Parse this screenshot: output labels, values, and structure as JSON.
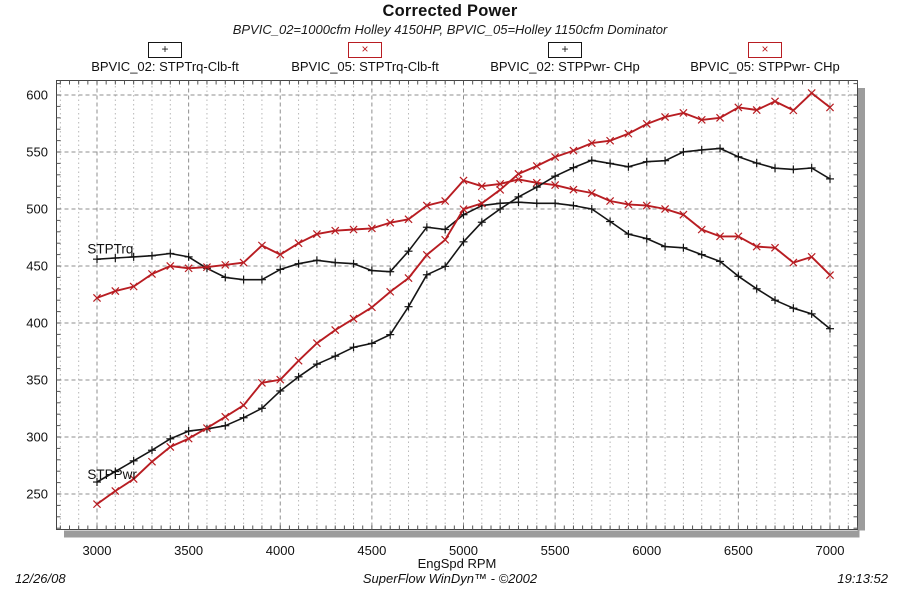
{
  "header": {
    "title": "Corrected Power",
    "subtitle": "BPVIC_02=1000cfm Holley 4150HP, BPVIC_05=Holley 1150cfm Dominator"
  },
  "legend": [
    {
      "marker": "+",
      "label": "BPVIC_02: STPTrq-Clb-ft",
      "color": "#151515"
    },
    {
      "marker": "×",
      "label": "BPVIC_05: STPTrq-Clb-ft",
      "color": "#b81d22"
    },
    {
      "marker": "+",
      "label": "BPVIC_02: STPPwr- CHp",
      "color": "#151515"
    },
    {
      "marker": "×",
      "label": "BPVIC_05: STPPwr- CHp",
      "color": "#b81d22"
    }
  ],
  "footer": {
    "date": "12/26/08",
    "center": "SuperFlow WinDyn™ - ©2002",
    "time": "19:13:52"
  },
  "chart_data": {
    "type": "line",
    "title": "Corrected Power",
    "xlabel": "EngSpd  RPM",
    "ylabel": "",
    "xlim": [
      3000,
      7000
    ],
    "ylim": [
      250,
      600
    ],
    "xticks": [
      3000,
      3500,
      4000,
      4500,
      5000,
      5500,
      6000,
      6500,
      7000
    ],
    "yticks": [
      250,
      300,
      350,
      400,
      450,
      500,
      550,
      600
    ],
    "grid": {
      "horizontal": "dashed every 50",
      "vertical_minor": "dotted every 100 rpm",
      "vertical_major": "dashed every 500 rpm"
    },
    "legend_position": "top",
    "x": [
      3000,
      3100,
      3200,
      3300,
      3400,
      3500,
      3600,
      3700,
      3800,
      3900,
      4000,
      4100,
      4200,
      4300,
      4400,
      4500,
      4600,
      4700,
      4800,
      4900,
      5000,
      5100,
      5200,
      5300,
      5400,
      5500,
      5600,
      5700,
      5800,
      5900,
      6000,
      6100,
      6200,
      6300,
      6400,
      6500,
      6600,
      6700,
      6800,
      6900,
      7000
    ],
    "series": [
      {
        "name": "BPVIC_02: STPTrq-Clb-ft",
        "color": "#151515",
        "marker": "+",
        "values": [
          456,
          457,
          458,
          459,
          461,
          458,
          448,
          440,
          438,
          438,
          447,
          452,
          455,
          453,
          452,
          446,
          445,
          463,
          484,
          482,
          495,
          503,
          505,
          506,
          505,
          505,
          503,
          500,
          489,
          478,
          474,
          467,
          466,
          460,
          454,
          441,
          430,
          420,
          413,
          408,
          395
        ]
      },
      {
        "name": "BPVIC_05: STPTrq-Clb-ft",
        "color": "#b81d22",
        "marker": "×",
        "values": [
          422,
          428,
          432,
          443,
          450,
          448,
          449,
          451,
          453,
          468,
          460,
          470,
          478,
          481,
          482,
          483,
          488,
          491,
          503,
          507,
          525,
          520,
          522,
          526,
          523,
          521,
          517,
          514,
          507,
          504,
          503,
          500,
          495,
          482,
          476,
          476,
          467,
          466,
          453,
          458,
          442
        ]
      },
      {
        "name": "BPVIC_02: STPPwr- CHp",
        "color": "#151515",
        "marker": "+",
        "values": [
          260.5,
          269.7,
          279.1,
          288.4,
          298.4,
          305.2,
          307.1,
          309.9,
          316.9,
          325.2,
          340.4,
          352.8,
          363.9,
          370.9,
          378.7,
          382.1,
          389.8,
          414.3,
          442.3,
          449.7,
          471.2,
          488.4,
          500.0,
          510.6,
          519.2,
          528.8,
          536.3,
          542.7,
          540.0,
          537.0,
          541.5,
          542.4,
          550.1,
          551.8,
          553.2,
          545.8,
          540.3,
          535.8,
          534.7,
          536.0,
          526.4
        ]
      },
      {
        "name": "BPVIC_05: STPPwr- CHp",
        "color": "#b81d22",
        "marker": "×",
        "values": [
          241.1,
          252.6,
          263.2,
          278.3,
          291.3,
          298.6,
          307.8,
          317.7,
          327.8,
          347.5,
          350.3,
          366.9,
          382.3,
          393.8,
          403.8,
          413.8,
          427.4,
          439.4,
          459.7,
          473.0,
          499.8,
          504.9,
          516.8,
          530.8,
          537.7,
          545.6,
          551.2,
          557.8,
          559.9,
          566.1,
          574.6,
          580.7,
          584.3,
          578.2,
          580.0,
          589.1,
          586.8,
          594.4,
          586.5,
          601.7,
          589.1
        ]
      }
    ],
    "curve_labels": [
      {
        "text": "STPTrq",
        "rpm": 2975,
        "value": 461
      },
      {
        "text": "STPPwr",
        "rpm": 2975,
        "value": 263
      }
    ]
  }
}
